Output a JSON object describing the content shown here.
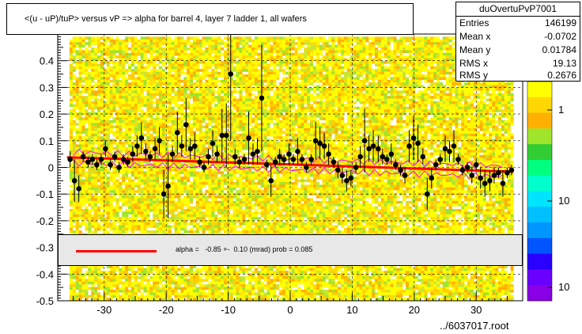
{
  "title": "<(u - uP)/tuP> versus   vP => alpha for barrel 4, layer 7 ladder 1, all wafers",
  "stats": {
    "name": "duOvertuPvP7001",
    "rows": [
      {
        "label": "Entries",
        "value": "146199"
      },
      {
        "label": "Mean x",
        "value": "-0.0702"
      },
      {
        "label": "Mean y",
        "value": "0.01784"
      },
      {
        "label": "RMS x",
        "value": "19.13"
      },
      {
        "label": "RMS y",
        "value": "0.2676"
      }
    ]
  },
  "fit_legend": "alpha =   -0.85 +-  0.10 (mrad) prob = 0.085",
  "footer": "../6037017.root",
  "chart_data": {
    "type": "scatter",
    "xlim": [
      -37.5,
      37.5
    ],
    "ylim": [
      -0.5,
      0.5
    ],
    "x_ticks": [
      -30,
      -20,
      -10,
      0,
      10,
      20,
      30
    ],
    "y_ticks": [
      -0.5,
      -0.4,
      -0.3,
      -0.2,
      -0.1,
      0,
      0.1,
      0.2,
      0.3,
      0.4
    ],
    "grid": true,
    "background": "2D histogram (colz), yellow/orange/green cells",
    "colorbar_labels": [
      "1",
      "10",
      "10"
    ],
    "colors": {
      "points": "#000000",
      "fit_line": "#ff0000",
      "band": "#ff00ff",
      "hist_main": "#ffff00",
      "hist_alt": "#ffa500"
    },
    "profile_points": [
      {
        "x": -35.5,
        "y": 0.03
      },
      {
        "x": -34.8,
        "y": -0.05
      },
      {
        "x": -34.1,
        "y": -0.08
      },
      {
        "x": -33.4,
        "y": 0.04
      },
      {
        "x": -32.6,
        "y": 0.02
      },
      {
        "x": -31.9,
        "y": 0.03
      },
      {
        "x": -31.2,
        "y": 0.01
      },
      {
        "x": -30.5,
        "y": 0.03
      },
      {
        "x": -29.8,
        "y": 0.07
      },
      {
        "x": -29.0,
        "y": 0.01
      },
      {
        "x": -28.3,
        "y": 0.04
      },
      {
        "x": -27.6,
        "y": 0.0
      },
      {
        "x": -26.9,
        "y": 0.03
      },
      {
        "x": -26.2,
        "y": 0.02
      },
      {
        "x": -25.4,
        "y": 0.05
      },
      {
        "x": -24.7,
        "y": 0.08
      },
      {
        "x": -24.0,
        "y": 0.11
      },
      {
        "x": -23.3,
        "y": 0.06
      },
      {
        "x": -22.6,
        "y": 0.04
      },
      {
        "x": -21.8,
        "y": 0.07
      },
      {
        "x": -21.1,
        "y": 0.1
      },
      {
        "x": -20.4,
        "y": -0.1
      },
      {
        "x": -19.7,
        "y": -0.07
      },
      {
        "x": -19.0,
        "y": 0.05
      },
      {
        "x": -18.2,
        "y": 0.13
      },
      {
        "x": -17.5,
        "y": 0.08
      },
      {
        "x": -16.8,
        "y": 0.16
      },
      {
        "x": -16.1,
        "y": 0.07
      },
      {
        "x": -15.4,
        "y": 0.08
      },
      {
        "x": -14.6,
        "y": 0.02
      },
      {
        "x": -13.9,
        "y": 0.0
      },
      {
        "x": -13.2,
        "y": 0.04
      },
      {
        "x": -12.5,
        "y": 0.09
      },
      {
        "x": -11.8,
        "y": 0.05
      },
      {
        "x": -11.0,
        "y": 0.12
      },
      {
        "x": -10.3,
        "y": 0.12
      },
      {
        "x": -9.6,
        "y": 0.35
      },
      {
        "x": -8.9,
        "y": 0.04
      },
      {
        "x": -8.2,
        "y": 0.02
      },
      {
        "x": -7.4,
        "y": 0.03
      },
      {
        "x": -6.7,
        "y": 0.11
      },
      {
        "x": -6.0,
        "y": 0.05
      },
      {
        "x": -5.3,
        "y": 0.06
      },
      {
        "x": -4.6,
        "y": 0.26
      },
      {
        "x": -3.8,
        "y": 0.01
      },
      {
        "x": -3.1,
        "y": -0.05
      },
      {
        "x": -2.4,
        "y": 0.02
      },
      {
        "x": -1.7,
        "y": 0.04
      },
      {
        "x": -1.0,
        "y": 0.03
      },
      {
        "x": -0.2,
        "y": 0.05
      },
      {
        "x": 0.5,
        "y": 0.03
      },
      {
        "x": 1.2,
        "y": 0.06
      },
      {
        "x": 1.9,
        "y": 0.03
      },
      {
        "x": 2.6,
        "y": 0.0
      },
      {
        "x": 3.4,
        "y": 0.03
      },
      {
        "x": 4.1,
        "y": 0.1
      },
      {
        "x": 4.8,
        "y": 0.09
      },
      {
        "x": 5.5,
        "y": 0.08
      },
      {
        "x": 6.2,
        "y": 0.05
      },
      {
        "x": 7.0,
        "y": 0.02
      },
      {
        "x": 7.7,
        "y": -0.01
      },
      {
        "x": 8.4,
        "y": -0.03
      },
      {
        "x": 9.1,
        "y": -0.05
      },
      {
        "x": 9.8,
        "y": -0.04
      },
      {
        "x": 10.6,
        "y": 0.0
      },
      {
        "x": 11.3,
        "y": 0.04
      },
      {
        "x": 12.0,
        "y": 0.1
      },
      {
        "x": 12.7,
        "y": 0.07
      },
      {
        "x": 13.4,
        "y": 0.08
      },
      {
        "x": 14.2,
        "y": 0.07
      },
      {
        "x": 14.9,
        "y": 0.04
      },
      {
        "x": 15.6,
        "y": 0.03
      },
      {
        "x": 16.3,
        "y": 0.05
      },
      {
        "x": 17.0,
        "y": 0.01
      },
      {
        "x": 17.8,
        "y": -0.01
      },
      {
        "x": 18.5,
        "y": -0.03
      },
      {
        "x": 19.2,
        "y": 0.08
      },
      {
        "x": 19.9,
        "y": 0.11
      },
      {
        "x": 20.6,
        "y": 0.09
      },
      {
        "x": 21.4,
        "y": 0.04
      },
      {
        "x": 22.1,
        "y": -0.1
      },
      {
        "x": 22.8,
        "y": -0.04
      },
      {
        "x": 23.5,
        "y": 0.01
      },
      {
        "x": 24.2,
        "y": 0.03
      },
      {
        "x": 25.0,
        "y": 0.07
      },
      {
        "x": 25.7,
        "y": 0.06
      },
      {
        "x": 26.4,
        "y": 0.08
      },
      {
        "x": 27.1,
        "y": 0.03
      },
      {
        "x": 27.8,
        "y": -0.01
      },
      {
        "x": 28.6,
        "y": 0.0
      },
      {
        "x": 29.3,
        "y": -0.03
      },
      {
        "x": 30.0,
        "y": 0.01
      },
      {
        "x": 30.7,
        "y": -0.04
      },
      {
        "x": 31.4,
        "y": -0.06
      },
      {
        "x": 32.2,
        "y": -0.05
      },
      {
        "x": 32.9,
        "y": -0.03
      },
      {
        "x": 33.6,
        "y": -0.02
      },
      {
        "x": 34.3,
        "y": -0.06
      },
      {
        "x": 35.0,
        "y": -0.02
      },
      {
        "x": 35.7,
        "y": -0.01
      }
    ],
    "error_bars": [
      0.03,
      0.08,
      0.05,
      0.02,
      0.02,
      0.02,
      0.02,
      0.02,
      0.03,
      0.02,
      0.02,
      0.02,
      0.02,
      0.02,
      0.03,
      0.04,
      0.06,
      0.03,
      0.02,
      0.04,
      0.05,
      0.09,
      0.12,
      0.03,
      0.08,
      0.04,
      0.1,
      0.04,
      0.05,
      0.02,
      0.02,
      0.03,
      0.05,
      0.03,
      0.1,
      0.12,
      0.25,
      0.03,
      0.02,
      0.02,
      0.1,
      0.04,
      0.05,
      0.2,
      0.02,
      0.06,
      0.02,
      0.03,
      0.02,
      0.04,
      0.02,
      0.05,
      0.02,
      0.02,
      0.02,
      0.07,
      0.06,
      0.05,
      0.04,
      0.02,
      0.03,
      0.03,
      0.04,
      0.03,
      0.02,
      0.04,
      0.12,
      0.05,
      0.06,
      0.05,
      0.03,
      0.02,
      0.04,
      0.02,
      0.02,
      0.03,
      0.06,
      0.08,
      0.07,
      0.03,
      0.06,
      0.04,
      0.02,
      0.02,
      0.05,
      0.04,
      0.06,
      0.02,
      0.02,
      0.02,
      0.03,
      0.02,
      0.04,
      0.05,
      0.04,
      0.03,
      0.02,
      0.05,
      0.02,
      0.02
    ],
    "fit": {
      "type": "line",
      "x": [
        -36,
        36
      ],
      "y": [
        0.038,
        -0.016
      ]
    }
  }
}
